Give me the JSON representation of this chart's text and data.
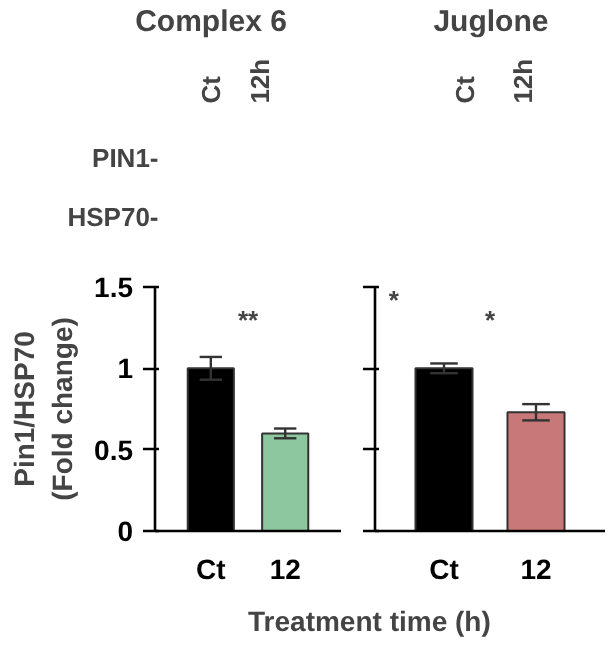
{
  "chart_data": [
    {
      "type": "bar",
      "title": "Complex 6",
      "ylabel": "Pin1/HSP70 (Fold change)",
      "xlabel": "Treatment time (h)",
      "categories": [
        "Ct",
        "12"
      ],
      "values": [
        1.0,
        0.6
      ],
      "errors": [
        0.07,
        0.03
      ],
      "colors": [
        "#000000",
        "#8cc7a0"
      ],
      "ylim": [
        0,
        1.5
      ],
      "yticks": [
        0,
        {
          "value": 0.5,
          "label": "0.5"
        },
        1,
        1.5
      ],
      "grid": false,
      "annotations": [
        "Ct",
        "12h",
        "PIN1-",
        "HSP70-",
        "**"
      ]
    },
    {
      "type": "bar",
      "title": "Juglone",
      "categories": [
        "Ct",
        "12"
      ],
      "values": [
        1.0,
        0.73
      ],
      "errors": [
        0.03,
        0.05
      ],
      "colors": [
        "#000000",
        "#c87878"
      ],
      "ylim": [
        0,
        1.5
      ],
      "yticks": [
        0,
        0.5,
        1,
        1.5
      ],
      "tick_labels": "x",
      "grid": false,
      "annotations": [
        "Ct",
        "12h",
        "*",
        "*"
      ]
    }
  ]
}
